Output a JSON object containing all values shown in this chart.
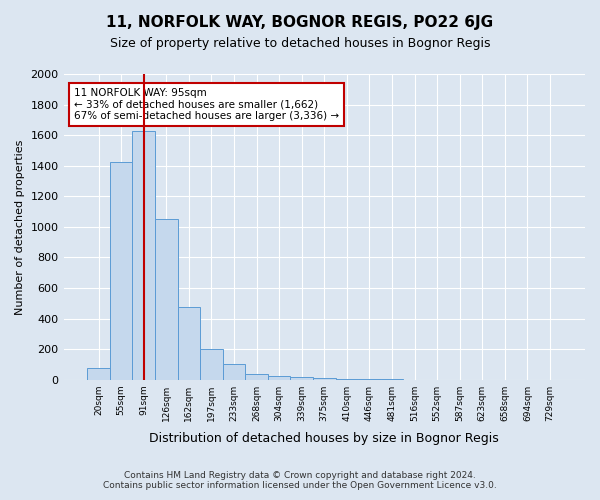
{
  "title": "11, NORFOLK WAY, BOGNOR REGIS, PO22 6JG",
  "subtitle": "Size of property relative to detached houses in Bognor Regis",
  "xlabel": "Distribution of detached houses by size in Bognor Regis",
  "ylabel": "Number of detached properties",
  "footer_line1": "Contains HM Land Registry data © Crown copyright and database right 2024.",
  "footer_line2": "Contains public sector information licensed under the Open Government Licence v3.0.",
  "bins": [
    "20sqm",
    "55sqm",
    "91sqm",
    "126sqm",
    "162sqm",
    "197sqm",
    "233sqm",
    "268sqm",
    "304sqm",
    "339sqm",
    "375sqm",
    "410sqm",
    "446sqm",
    "481sqm",
    "516sqm",
    "552sqm",
    "587sqm",
    "623sqm",
    "658sqm",
    "694sqm",
    "729sqm"
  ],
  "values": [
    75,
    1425,
    1625,
    1050,
    475,
    200,
    100,
    35,
    25,
    20,
    10,
    5,
    2,
    1,
    0,
    0,
    0,
    0,
    0,
    0,
    0
  ],
  "bar_color": "#c5d8ed",
  "bar_edge_color": "#5b9bd5",
  "property_bin_index": 2,
  "vline_color": "#c00000",
  "annotation_text": "11 NORFOLK WAY: 95sqm\n← 33% of detached houses are smaller (1,662)\n67% of semi-detached houses are larger (3,336) →",
  "annotation_box_color": "#ffffff",
  "annotation_box_edge": "#c00000",
  "ylim": [
    0,
    2000
  ],
  "yticks": [
    0,
    200,
    400,
    600,
    800,
    1000,
    1200,
    1400,
    1600,
    1800,
    2000
  ],
  "background_color": "#dce6f1",
  "plot_bg_color": "#dce6f1",
  "grid_color": "#ffffff"
}
